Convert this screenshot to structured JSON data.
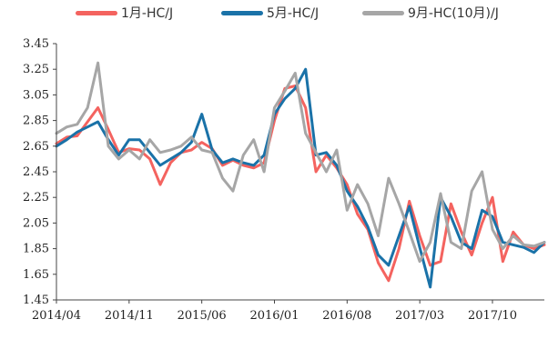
{
  "chart_data": {
    "type": "line",
    "title": "",
    "xlabel": "",
    "ylabel": "",
    "ylim": [
      1.45,
      3.45
    ],
    "yticks": [
      "3.45",
      "3.25",
      "3.05",
      "2.85",
      "2.65",
      "2.45",
      "2.25",
      "2.05",
      "1.85",
      "1.65",
      "1.45"
    ],
    "xticks": [
      "2014/04",
      "2014/11",
      "2015/06",
      "2016/01",
      "2016/08",
      "2017/03",
      "2017/10"
    ],
    "xlim": [
      "2014/04",
      "2018/03"
    ],
    "grid": false,
    "legend_position": "top",
    "series": [
      {
        "name": "1月-HC/J",
        "color": "#f4635f",
        "points": [
          [
            "2014/04",
            2.67
          ],
          [
            "2014/05",
            2.72
          ],
          [
            "2014/06",
            2.73
          ],
          [
            "2014/07",
            2.84
          ],
          [
            "2014/08",
            2.95
          ],
          [
            "2014/09",
            2.78
          ],
          [
            "2014/10",
            2.6
          ],
          [
            "2014/11",
            2.63
          ],
          [
            "2014/12",
            2.62
          ],
          [
            "2015/01",
            2.55
          ],
          [
            "2015/02",
            2.35
          ],
          [
            "2015/03",
            2.52
          ],
          [
            "2015/04",
            2.6
          ],
          [
            "2015/05",
            2.62
          ],
          [
            "2015/06",
            2.68
          ],
          [
            "2015/07",
            2.63
          ],
          [
            "2015/08",
            2.5
          ],
          [
            "2015/09",
            2.54
          ],
          [
            "2015/10",
            2.5
          ],
          [
            "2015/11",
            2.48
          ],
          [
            "2015/12",
            2.52
          ],
          [
            "2016/01",
            2.85
          ],
          [
            "2016/02",
            3.1
          ],
          [
            "2016/03",
            3.12
          ],
          [
            "2016/04",
            2.95
          ],
          [
            "2016/05",
            2.45
          ],
          [
            "2016/06",
            2.58
          ],
          [
            "2016/07",
            2.48
          ],
          [
            "2016/08",
            2.35
          ],
          [
            "2016/09",
            2.12
          ],
          [
            "2016/10",
            2.0
          ],
          [
            "2016/11",
            1.74
          ],
          [
            "2016/12",
            1.6
          ],
          [
            "2017/01",
            1.85
          ],
          [
            "2017/02",
            2.22
          ],
          [
            "2017/03",
            1.95
          ],
          [
            "2017/04",
            1.72
          ],
          [
            "2017/05",
            1.75
          ],
          [
            "2017/06",
            2.2
          ],
          [
            "2017/07",
            1.98
          ],
          [
            "2017/08",
            1.8
          ],
          [
            "2017/09",
            2.05
          ],
          [
            "2017/10",
            2.25
          ],
          [
            "2017/11",
            1.75
          ],
          [
            "2017/12",
            1.98
          ],
          [
            "2018/01",
            1.88
          ],
          [
            "2018/02",
            1.85
          ],
          [
            "2018/03",
            1.88
          ]
        ]
      },
      {
        "name": "5月-HC/J",
        "color": "#1a72a8",
        "points": [
          [
            "2014/04",
            2.65
          ],
          [
            "2014/05",
            2.7
          ],
          [
            "2014/06",
            2.76
          ],
          [
            "2014/07",
            2.8
          ],
          [
            "2014/08",
            2.84
          ],
          [
            "2014/09",
            2.7
          ],
          [
            "2014/10",
            2.58
          ],
          [
            "2014/11",
            2.7
          ],
          [
            "2014/12",
            2.7
          ],
          [
            "2015/01",
            2.6
          ],
          [
            "2015/02",
            2.5
          ],
          [
            "2015/03",
            2.55
          ],
          [
            "2015/04",
            2.6
          ],
          [
            "2015/05",
            2.68
          ],
          [
            "2015/06",
            2.9
          ],
          [
            "2015/07",
            2.62
          ],
          [
            "2015/08",
            2.52
          ],
          [
            "2015/09",
            2.55
          ],
          [
            "2015/10",
            2.52
          ],
          [
            "2015/11",
            2.5
          ],
          [
            "2015/12",
            2.58
          ],
          [
            "2016/01",
            2.9
          ],
          [
            "2016/02",
            3.02
          ],
          [
            "2016/03",
            3.1
          ],
          [
            "2016/04",
            3.25
          ],
          [
            "2016/05",
            2.58
          ],
          [
            "2016/06",
            2.6
          ],
          [
            "2016/07",
            2.5
          ],
          [
            "2016/08",
            2.3
          ],
          [
            "2016/09",
            2.18
          ],
          [
            "2016/10",
            2.02
          ],
          [
            "2016/11",
            1.8
          ],
          [
            "2016/12",
            1.72
          ],
          [
            "2017/01",
            1.95
          ],
          [
            "2017/02",
            2.18
          ],
          [
            "2017/03",
            1.86
          ],
          [
            "2017/04",
            1.55
          ],
          [
            "2017/05",
            2.25
          ],
          [
            "2017/06",
            2.1
          ],
          [
            "2017/07",
            1.9
          ],
          [
            "2017/08",
            1.85
          ],
          [
            "2017/09",
            2.15
          ],
          [
            "2017/10",
            2.1
          ],
          [
            "2017/11",
            1.9
          ],
          [
            "2017/12",
            1.88
          ],
          [
            "2018/01",
            1.86
          ],
          [
            "2018/02",
            1.82
          ],
          [
            "2018/03",
            1.9
          ]
        ]
      },
      {
        "name": "9月-HC(10月)/J",
        "color": "#a6a6a6",
        "points": [
          [
            "2014/04",
            2.75
          ],
          [
            "2014/05",
            2.8
          ],
          [
            "2014/06",
            2.82
          ],
          [
            "2014/07",
            2.95
          ],
          [
            "2014/08",
            3.3
          ],
          [
            "2014/09",
            2.65
          ],
          [
            "2014/10",
            2.55
          ],
          [
            "2014/11",
            2.62
          ],
          [
            "2014/12",
            2.55
          ],
          [
            "2015/01",
            2.7
          ],
          [
            "2015/02",
            2.6
          ],
          [
            "2015/03",
            2.62
          ],
          [
            "2015/04",
            2.65
          ],
          [
            "2015/05",
            2.72
          ],
          [
            "2015/06",
            2.62
          ],
          [
            "2015/07",
            2.6
          ],
          [
            "2015/08",
            2.4
          ],
          [
            "2015/09",
            2.3
          ],
          [
            "2015/10",
            2.58
          ],
          [
            "2015/11",
            2.7
          ],
          [
            "2015/12",
            2.45
          ],
          [
            "2016/01",
            2.95
          ],
          [
            "2016/02",
            3.08
          ],
          [
            "2016/03",
            3.22
          ],
          [
            "2016/04",
            2.75
          ],
          [
            "2016/05",
            2.6
          ],
          [
            "2016/06",
            2.45
          ],
          [
            "2016/07",
            2.62
          ],
          [
            "2016/08",
            2.15
          ],
          [
            "2016/09",
            2.35
          ],
          [
            "2016/10",
            2.2
          ],
          [
            "2016/11",
            1.95
          ],
          [
            "2016/12",
            2.4
          ],
          [
            "2017/01",
            2.2
          ],
          [
            "2017/02",
            1.98
          ],
          [
            "2017/03",
            1.75
          ],
          [
            "2017/04",
            1.9
          ],
          [
            "2017/05",
            2.28
          ],
          [
            "2017/06",
            1.9
          ],
          [
            "2017/07",
            1.85
          ],
          [
            "2017/08",
            2.3
          ],
          [
            "2017/09",
            2.45
          ],
          [
            "2017/10",
            2.0
          ],
          [
            "2017/11",
            1.85
          ],
          [
            "2017/12",
            1.95
          ],
          [
            "2018/01",
            1.88
          ],
          [
            "2018/02",
            1.87
          ],
          [
            "2018/03",
            1.9
          ]
        ]
      }
    ]
  }
}
